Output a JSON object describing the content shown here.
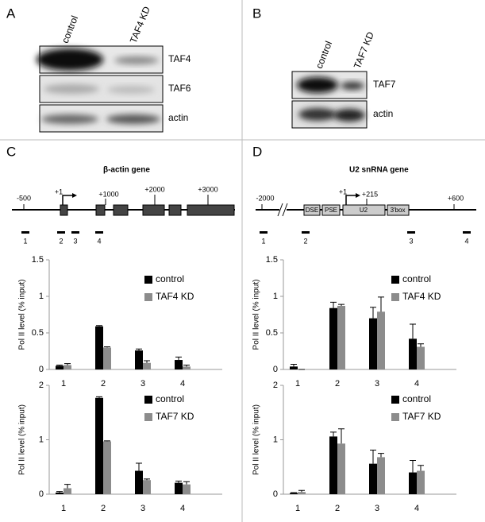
{
  "panels": {
    "A": {
      "label": "A",
      "lanes": [
        "control",
        "TAF4 KD"
      ],
      "bands": [
        "TAF4",
        "TAF6",
        "actin"
      ]
    },
    "B": {
      "label": "B",
      "lanes": [
        "control",
        "TAF7 KD"
      ],
      "bands": [
        "TAF7",
        "actin"
      ]
    },
    "C": {
      "label": "C",
      "gene": "β-actin gene",
      "positions": [
        "-500",
        "+1",
        "+1000",
        "+2000",
        "+3000"
      ],
      "amplicons": [
        "1",
        "2",
        "3",
        "4"
      ]
    },
    "D": {
      "label": "D",
      "gene": "U2 snRNA gene",
      "positions": [
        "-2000",
        "+1",
        "+215",
        "+600"
      ],
      "elements": [
        "DSE",
        "PSE",
        "U2",
        "3'box"
      ],
      "amplicons": [
        "1",
        "2",
        "3",
        "4"
      ]
    }
  },
  "chart_data": [
    {
      "type": "bar",
      "ylabel": "Pol II  level (% input)",
      "categories": [
        "1",
        "2",
        "3",
        "4"
      ],
      "ylim": [
        0,
        1.5
      ],
      "yticks": [
        0,
        0.5,
        1,
        1.5
      ],
      "series": [
        {
          "name": "control",
          "color": "#000000",
          "values": [
            0.05,
            0.59,
            0.26,
            0.13
          ],
          "errors": [
            0.01,
            0.01,
            0.02,
            0.04
          ]
        },
        {
          "name": "TAF4 KD",
          "color": "#8c8c8c",
          "values": [
            0.06,
            0.3,
            0.09,
            0.04
          ],
          "errors": [
            0.02,
            0.01,
            0.03,
            0.02
          ]
        }
      ]
    },
    {
      "type": "bar",
      "ylabel": "Pol II  level (% input)",
      "categories": [
        "1",
        "2",
        "3",
        "4"
      ],
      "ylim": [
        0,
        2
      ],
      "yticks": [
        0,
        1,
        2
      ],
      "series": [
        {
          "name": "control",
          "color": "#000000",
          "values": [
            0.03,
            1.77,
            0.43,
            0.21
          ],
          "errors": [
            0.02,
            0.02,
            0.14,
            0.03
          ]
        },
        {
          "name": "TAF7 KD",
          "color": "#8c8c8c",
          "values": [
            0.11,
            0.97,
            0.26,
            0.18
          ],
          "errors": [
            0.07,
            0.01,
            0.02,
            0.05
          ]
        }
      ]
    },
    {
      "type": "bar",
      "ylabel": "Pol II  level (% input)",
      "categories": [
        "1",
        "2",
        "3",
        "4"
      ],
      "ylim": [
        0,
        1.5
      ],
      "yticks": [
        0,
        0.5,
        1,
        1.5
      ],
      "series": [
        {
          "name": "control",
          "color": "#000000",
          "values": [
            0.04,
            0.84,
            0.7,
            0.42
          ],
          "errors": [
            0.03,
            0.08,
            0.15,
            0.2
          ]
        },
        {
          "name": "TAF4 KD",
          "color": "#8c8c8c",
          "values": [
            0.0,
            0.87,
            0.79,
            0.31
          ],
          "errors": [
            0.0,
            0.02,
            0.2,
            0.04
          ]
        }
      ]
    },
    {
      "type": "bar",
      "ylabel": "Pol II  level (% input)",
      "categories": [
        "1",
        "2",
        "3",
        "4"
      ],
      "ylim": [
        0,
        2
      ],
      "yticks": [
        0,
        1,
        2
      ],
      "series": [
        {
          "name": "control",
          "color": "#000000",
          "values": [
            0.02,
            1.06,
            0.56,
            0.4
          ],
          "errors": [
            0.01,
            0.08,
            0.25,
            0.22
          ]
        },
        {
          "name": "TAF7 KD",
          "color": "#8c8c8c",
          "values": [
            0.04,
            0.93,
            0.68,
            0.43
          ],
          "errors": [
            0.03,
            0.27,
            0.07,
            0.1
          ]
        }
      ]
    }
  ]
}
